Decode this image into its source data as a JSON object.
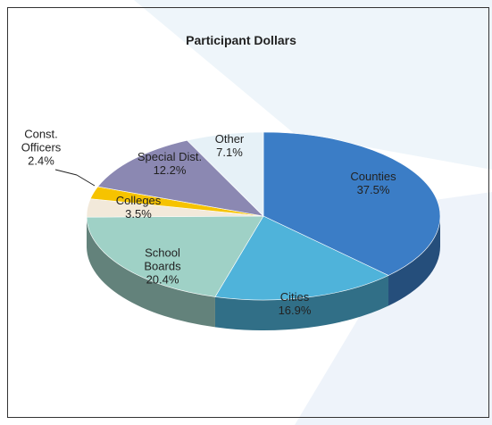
{
  "chart_data": {
    "type": "pie",
    "title": "Participant Dollars",
    "categories": [
      "Counties",
      "Cities",
      "School Boards",
      "Colleges",
      "Const. Officers",
      "Special Dist.",
      "Other"
    ],
    "values": [
      37.5,
      16.9,
      20.4,
      3.5,
      2.4,
      12.2,
      7.1
    ],
    "value_labels": [
      "37.5%",
      "16.9%",
      "20.4%",
      "3.5%",
      "2.4%",
      "12.2%",
      "7.1%"
    ],
    "colors": [
      "#3b7dc6",
      "#4fb3da",
      "#9fd1c6",
      "#f2e9da",
      "#f6c300",
      "#8b88b2",
      "#e6f1f7"
    ]
  }
}
